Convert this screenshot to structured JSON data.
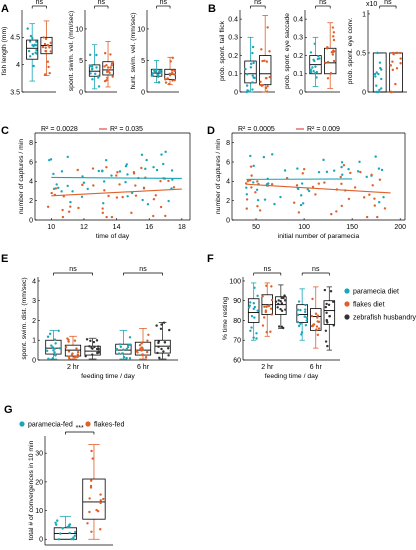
{
  "colors": {
    "blue": "#1aa6b7",
    "orange": "#e0602a",
    "gray": "#333333",
    "r2_blue": "#12a6c0",
    "r2_red": "#d62828"
  },
  "chart_data": [
    {
      "id": "A1",
      "panel": "A",
      "type": "box",
      "ylabel": "fish length (mm)",
      "ylim": [
        3.5,
        5.0
      ],
      "yticks": [
        3.5,
        4,
        4.5
      ],
      "categories": [
        "paramecia-fed",
        "flakes-fed"
      ],
      "boxes": [
        {
          "q1": 4.1,
          "med": 4.3,
          "q3": 4.45,
          "wlo": 3.7,
          "whi": 4.75
        },
        {
          "q1": 4.2,
          "med": 4.35,
          "q3": 4.5,
          "wlo": 3.8,
          "whi": 4.8
        }
      ],
      "sig": "ns"
    },
    {
      "id": "A2",
      "panel": "A",
      "type": "box",
      "ylabel": "spont. swim. vel. (mm/sec)",
      "ylim": [
        0,
        13
      ],
      "yticks": [
        0,
        5,
        10
      ],
      "categories": [
        "paramecia-fed",
        "flakes-fed"
      ],
      "boxes": [
        {
          "q1": 2.5,
          "med": 3.3,
          "q3": 4.3,
          "wlo": 0.5,
          "whi": 7.5
        },
        {
          "q1": 2.7,
          "med": 3.5,
          "q3": 4.8,
          "wlo": 0.8,
          "whi": 8
        }
      ],
      "sig": "ns"
    },
    {
      "id": "A3",
      "panel": "A",
      "type": "box",
      "ylabel": "hunt. swim. vel. (mm/sec)",
      "ylim": [
        0,
        13
      ],
      "yticks": [
        0,
        5,
        10
      ],
      "categories": [
        "paramecia-fed",
        "flakes-fed"
      ],
      "boxes": [
        {
          "q1": 2.5,
          "med": 3,
          "q3": 3.6,
          "wlo": 1.5,
          "whi": 5
        },
        {
          "q1": 2,
          "med": 2.8,
          "q3": 3.6,
          "wlo": 1.2,
          "whi": 5.5
        }
      ],
      "sig": "ns"
    },
    {
      "id": "B1",
      "panel": "B",
      "type": "box",
      "ylabel": "prob. spont. tail flick",
      "ylim": [
        0,
        0.45
      ],
      "yticks": [
        0,
        0.1,
        0.2,
        0.3,
        0.4
      ],
      "categories": [
        "paramecia-fed",
        "flakes-fed"
      ],
      "boxes": [
        {
          "q1": 0.05,
          "med": 0.1,
          "q3": 0.17,
          "wlo": 0,
          "whi": 0.3
        },
        {
          "q1": 0.04,
          "med": 0.1,
          "q3": 0.2,
          "wlo": 0,
          "whi": 0.42
        }
      ],
      "sig": "ns"
    },
    {
      "id": "B2",
      "panel": "B",
      "type": "box",
      "ylabel": "prob. spont. eye saccade",
      "ylim": [
        0,
        0.45
      ],
      "yticks": [
        0,
        0.1,
        0.2,
        0.3,
        0.4
      ],
      "categories": [
        "paramecia-fed",
        "flakes-fed"
      ],
      "boxes": [
        {
          "q1": 0.1,
          "med": 0.15,
          "q3": 0.2,
          "wlo": 0.03,
          "whi": 0.3
        },
        {
          "q1": 0.1,
          "med": 0.16,
          "q3": 0.24,
          "wlo": 0.02,
          "whi": 0.38
        }
      ],
      "sig": "ns"
    },
    {
      "id": "B3",
      "panel": "B",
      "type": "box",
      "ylabel": "prob. spont. eye conv.",
      "yexp": "x10",
      "ylim": [
        0,
        1.05
      ],
      "yticks": [
        0,
        0.5,
        1
      ],
      "categories": [
        "paramecia-fed",
        "flakes-fed"
      ],
      "boxes": [
        {
          "q1": 0,
          "med": 0,
          "q3": 0.5,
          "wlo": 0,
          "whi": 0.5
        },
        {
          "q1": 0,
          "med": 0,
          "q3": 0.5,
          "wlo": 0,
          "whi": 0.5
        }
      ],
      "sig": "ns"
    },
    {
      "id": "C",
      "panel": "C",
      "type": "scatter",
      "xlabel": "time of day",
      "ylabel": "number of captures / min",
      "xlim": [
        9,
        18.5
      ],
      "xticks": [
        10,
        12,
        14,
        16,
        18
      ],
      "ylim": [
        0,
        9
      ],
      "yticks": [
        0,
        2,
        4,
        6,
        8
      ],
      "fits": [
        {
          "series": "paramecia-fed",
          "r2": "R² = 0.0028",
          "x": [
            10,
            18
          ],
          "y": [
            4.4,
            4.3
          ]
        },
        {
          "series": "flakes-fed",
          "r2": "R² = 0.035",
          "x": [
            10,
            18
          ],
          "y": [
            2.5,
            3.2
          ]
        }
      ]
    },
    {
      "id": "D",
      "panel": "D",
      "type": "scatter",
      "xlabel": "initial number of paramecia",
      "ylabel": "number of captures / min",
      "xlim": [
        25,
        205
      ],
      "xticks": [
        50,
        100,
        150,
        200
      ],
      "ylim": [
        0,
        9
      ],
      "yticks": [
        0,
        2,
        4,
        6,
        8
      ],
      "fits": [
        {
          "series": "paramecia-fed",
          "r2": "R² = 0.0005",
          "x": [
            40,
            150
          ],
          "y": [
            4.2,
            4.25
          ]
        },
        {
          "series": "flakes-fed",
          "r2": "R² = 0.009",
          "x": [
            40,
            190
          ],
          "y": [
            3.7,
            2.8
          ]
        }
      ]
    },
    {
      "id": "E",
      "panel": "E",
      "type": "box",
      "xlabel": "feeding time / day",
      "ylabel": "spont. swim. dist. (mm/sec)",
      "ylim": [
        0,
        4.2
      ],
      "yticks": [
        0,
        1,
        2,
        3,
        4
      ],
      "groups": [
        "2 hr",
        "6 hr"
      ],
      "series": [
        "paramecia diet",
        "flakes diet",
        "zebrafish husbandry diet"
      ],
      "boxes": [
        [
          {
            "q1": 0.3,
            "med": 0.6,
            "q3": 1.0,
            "wlo": 0.05,
            "whi": 1.5
          },
          {
            "q1": 0.2,
            "med": 0.5,
            "q3": 0.75,
            "wlo": 0.05,
            "whi": 1.2
          },
          {
            "q1": 0.25,
            "med": 0.45,
            "q3": 0.7,
            "wlo": 0.05,
            "whi": 1.1
          }
        ],
        [
          {
            "q1": 0.3,
            "med": 0.5,
            "q3": 0.8,
            "wlo": 0.05,
            "whi": 1.5
          },
          {
            "q1": 0.25,
            "med": 0.5,
            "q3": 0.9,
            "wlo": 0.05,
            "whi": 1.6
          },
          {
            "q1": 0.35,
            "med": 0.7,
            "q3": 1.0,
            "wlo": 0.05,
            "whi": 1.9
          }
        ]
      ],
      "sig": [
        "ns",
        "ns"
      ]
    },
    {
      "id": "F",
      "panel": "F",
      "type": "box",
      "xlabel": "feeding time / day",
      "ylabel": "% time resting",
      "ylim": [
        60,
        102
      ],
      "yticks": [
        60,
        70,
        80,
        90,
        100
      ],
      "groups": [
        "2 hr",
        "6 hr"
      ],
      "series": [
        "paramecia diet",
        "flakes diet",
        "zebrafish husbandry diet"
      ],
      "boxes": [
        [
          {
            "q1": 79,
            "med": 84,
            "q3": 91,
            "wlo": 70,
            "whi": 99
          },
          {
            "q1": 83,
            "med": 88,
            "q3": 93,
            "wlo": 72,
            "whi": 99
          },
          {
            "q1": 83,
            "med": 88,
            "q3": 92,
            "wlo": 76,
            "whi": 98
          }
        ],
        [
          {
            "q1": 79,
            "med": 83,
            "q3": 88,
            "wlo": 70,
            "whi": 96
          },
          {
            "q1": 75,
            "med": 82,
            "q3": 86,
            "wlo": 66,
            "whi": 97
          },
          {
            "q1": 78,
            "med": 85,
            "q3": 90,
            "wlo": 65,
            "whi": 97
          }
        ]
      ],
      "sig": [
        "ns",
        "ns"
      ],
      "legend": "right"
    },
    {
      "id": "G",
      "panel": "G",
      "type": "box",
      "ylabel": "total # of convergences in 10 min",
      "ylim": [
        -2,
        36
      ],
      "yticks": [
        0,
        10,
        20,
        30
      ],
      "categories": [
        "paramecia-fed",
        "flakes-fed"
      ],
      "boxes": [
        {
          "q1": 0,
          "med": 2,
          "q3": 4,
          "wlo": 0,
          "whi": 8
        },
        {
          "q1": 7,
          "med": 13,
          "q3": 21,
          "wlo": 0,
          "whi": 33
        }
      ],
      "sig": "***",
      "legend": "top"
    }
  ],
  "labels": {
    "panels": [
      "A",
      "B",
      "C",
      "D",
      "E",
      "F",
      "G"
    ],
    "legend_top": [
      "paramecia-fed",
      "flakes-fed"
    ],
    "legend_F": [
      "paramecia diet",
      "flakes diet",
      "zebrafish husbandry diet"
    ]
  }
}
